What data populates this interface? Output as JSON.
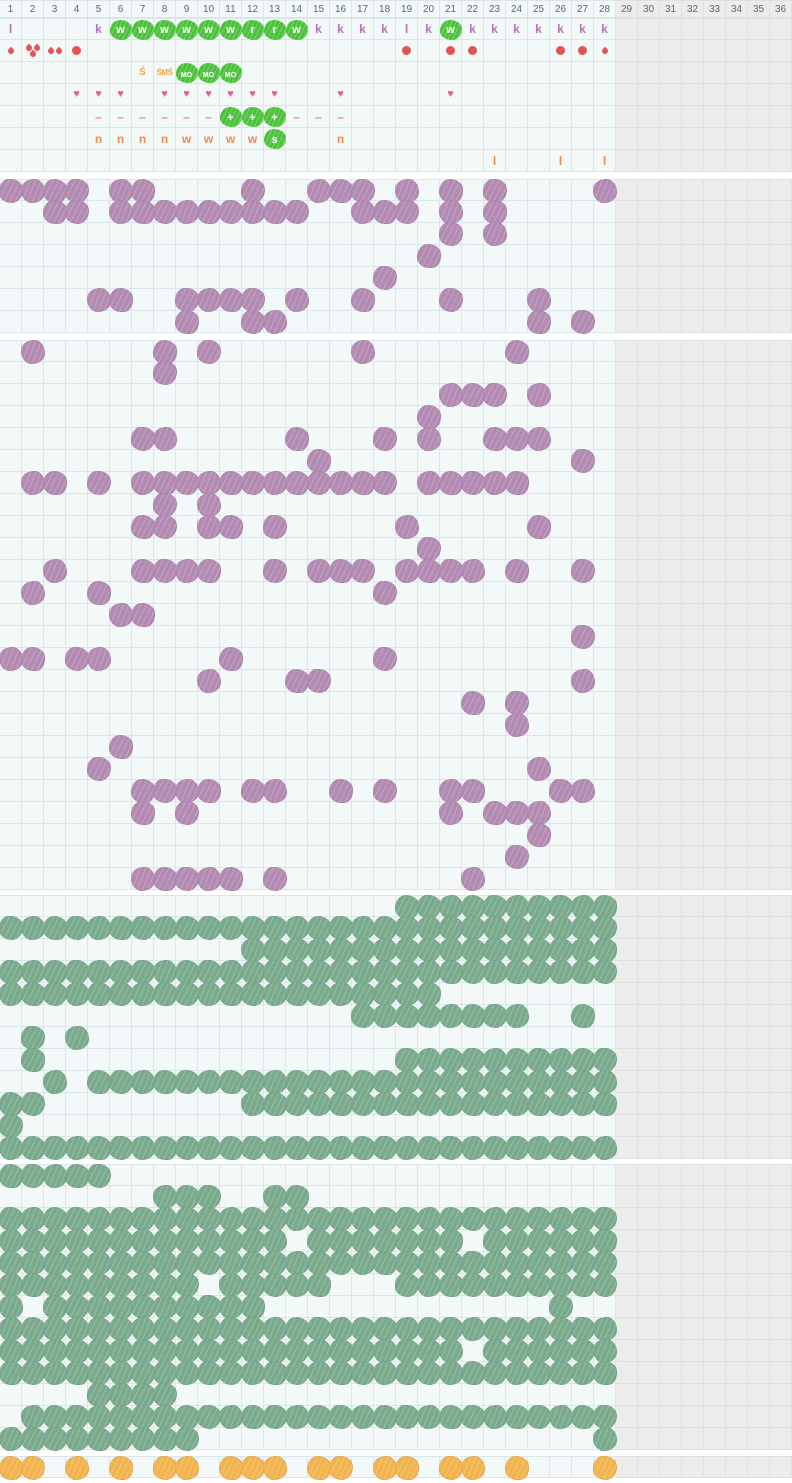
{
  "colors": {
    "purple_blob": "#b28ab2",
    "green_blob": "#7aaa8c",
    "orange_blob": "#f2b44e",
    "highlight_green": "#4cc23c",
    "red_symbol": "#e25454",
    "heart_pink": "#ee5d8d",
    "purple_text": "#b573b5",
    "orange_text": "#f28a50",
    "amber_text": "#f3a53f",
    "grid_line": "#d9e7ed",
    "cell_bg": "#f3f8f9",
    "inactive_bg": "#ececeb"
  },
  "grid": {
    "columns": 36,
    "active_columns": 28,
    "day_numbers": [
      "1",
      "2",
      "3",
      "4",
      "5",
      "6",
      "7",
      "8",
      "9",
      "10",
      "11",
      "12",
      "13",
      "14",
      "15",
      "16",
      "17",
      "18",
      "19",
      "20",
      "21",
      "22",
      "23",
      "24",
      "25",
      "26",
      "27",
      "28",
      "29",
      "30",
      "31",
      "32",
      "33",
      "34",
      "35",
      "36"
    ]
  },
  "header_section": {
    "rows": [
      {
        "name": "letters-row",
        "cells": [
          {
            "c": 1,
            "kind": "letter",
            "color": "p",
            "text": "l"
          },
          {
            "c": 5,
            "kind": "letter",
            "color": "p",
            "text": "k"
          },
          {
            "c": 6,
            "kind": "hl",
            "text": "w"
          },
          {
            "c": 7,
            "kind": "hl",
            "text": "w"
          },
          {
            "c": 8,
            "kind": "hl",
            "text": "w"
          },
          {
            "c": 9,
            "kind": "hl",
            "text": "w"
          },
          {
            "c": 10,
            "kind": "hl",
            "text": "w"
          },
          {
            "c": 11,
            "kind": "hl",
            "text": "w"
          },
          {
            "c": 12,
            "kind": "hl",
            "text": "r"
          },
          {
            "c": 13,
            "kind": "hl",
            "text": "r"
          },
          {
            "c": 14,
            "kind": "hl",
            "text": "w"
          },
          {
            "c": 15,
            "kind": "letter",
            "color": "p",
            "text": "k"
          },
          {
            "c": 16,
            "kind": "letter",
            "color": "p",
            "text": "k"
          },
          {
            "c": 17,
            "kind": "letter",
            "color": "p",
            "text": "k"
          },
          {
            "c": 18,
            "kind": "letter",
            "color": "p",
            "text": "k"
          },
          {
            "c": 19,
            "kind": "letter",
            "color": "p",
            "text": "l"
          },
          {
            "c": 20,
            "kind": "letter",
            "color": "p",
            "text": "k"
          },
          {
            "c": 21,
            "kind": "hl",
            "text": "w"
          },
          {
            "c": 22,
            "kind": "letter",
            "color": "p",
            "text": "k"
          },
          {
            "c": 23,
            "kind": "letter",
            "color": "p",
            "text": "k"
          },
          {
            "c": 24,
            "kind": "letter",
            "color": "p",
            "text": "k"
          },
          {
            "c": 25,
            "kind": "letter",
            "color": "p",
            "text": "k"
          },
          {
            "c": 26,
            "kind": "letter",
            "color": "p",
            "text": "k"
          },
          {
            "c": 27,
            "kind": "letter",
            "color": "p",
            "text": "k"
          },
          {
            "c": 28,
            "kind": "letter",
            "color": "p",
            "text": "k"
          }
        ]
      },
      {
        "name": "flow-row",
        "cells": [
          {
            "c": 1,
            "kind": "drop1"
          },
          {
            "c": 2,
            "kind": "drop3"
          },
          {
            "c": 3,
            "kind": "drop2"
          },
          {
            "c": 4,
            "kind": "dot"
          },
          {
            "c": 19,
            "kind": "dot"
          },
          {
            "c": 21,
            "kind": "dot"
          },
          {
            "c": 22,
            "kind": "dot"
          },
          {
            "c": 26,
            "kind": "dot"
          },
          {
            "c": 27,
            "kind": "dot"
          },
          {
            "c": 28,
            "kind": "drop1"
          }
        ]
      },
      {
        "name": "notes-row",
        "cells": [
          {
            "c": 7,
            "kind": "letter",
            "color": "a",
            "text": "Ś"
          },
          {
            "c": 8,
            "kind": "letter",
            "color": "a small",
            "text": "ŚMŚ"
          },
          {
            "c": 9,
            "kind": "hl-tiny",
            "text": "MO"
          },
          {
            "c": 10,
            "kind": "hl-tiny",
            "text": "MO"
          },
          {
            "c": 11,
            "kind": "hl-tiny",
            "text": "MO"
          }
        ]
      },
      {
        "name": "hearts-row",
        "cells": [
          {
            "c": 4,
            "kind": "heart"
          },
          {
            "c": 5,
            "kind": "heart"
          },
          {
            "c": 6,
            "kind": "heart"
          },
          {
            "c": 8,
            "kind": "heart"
          },
          {
            "c": 9,
            "kind": "heart"
          },
          {
            "c": 10,
            "kind": "heart"
          },
          {
            "c": 11,
            "kind": "heart"
          },
          {
            "c": 12,
            "kind": "heart"
          },
          {
            "c": 13,
            "kind": "heart"
          },
          {
            "c": 16,
            "kind": "heart"
          },
          {
            "c": 21,
            "kind": "heart"
          }
        ]
      },
      {
        "name": "plan-row",
        "cells": [
          {
            "c": 5,
            "kind": "letter",
            "color": "o",
            "text": "–"
          },
          {
            "c": 6,
            "kind": "letter",
            "color": "o",
            "text": "–"
          },
          {
            "c": 7,
            "kind": "letter",
            "color": "o",
            "text": "–"
          },
          {
            "c": 8,
            "kind": "letter",
            "color": "o",
            "text": "–"
          },
          {
            "c": 9,
            "kind": "letter",
            "color": "o",
            "text": "–"
          },
          {
            "c": 10,
            "kind": "letter",
            "color": "o",
            "text": "–"
          },
          {
            "c": 11,
            "kind": "hl",
            "text": "+"
          },
          {
            "c": 12,
            "kind": "hl",
            "text": "+"
          },
          {
            "c": 13,
            "kind": "hl",
            "text": "+"
          },
          {
            "c": 14,
            "kind": "letter",
            "color": "o",
            "text": "–"
          },
          {
            "c": 15,
            "kind": "letter",
            "color": "o",
            "text": "–"
          },
          {
            "c": 16,
            "kind": "letter",
            "color": "o",
            "text": "–"
          }
        ]
      },
      {
        "name": "shift-row",
        "cells": [
          {
            "c": 5,
            "kind": "letter",
            "color": "o",
            "text": "n"
          },
          {
            "c": 6,
            "kind": "letter",
            "color": "o",
            "text": "n"
          },
          {
            "c": 7,
            "kind": "letter",
            "color": "o",
            "text": "n"
          },
          {
            "c": 8,
            "kind": "letter",
            "color": "o",
            "text": "n"
          },
          {
            "c": 9,
            "kind": "letter",
            "color": "o",
            "text": "w"
          },
          {
            "c": 10,
            "kind": "letter",
            "color": "o",
            "text": "w"
          },
          {
            "c": 11,
            "kind": "letter",
            "color": "o",
            "text": "w"
          },
          {
            "c": 12,
            "kind": "letter",
            "color": "o",
            "text": "w"
          },
          {
            "c": 13,
            "kind": "hl",
            "text": "s"
          },
          {
            "c": 16,
            "kind": "letter",
            "color": "o",
            "text": "n"
          }
        ]
      },
      {
        "name": "marks-row",
        "cells": [
          {
            "c": 23,
            "kind": "letter",
            "color": "o",
            "text": "l"
          },
          {
            "c": 26,
            "kind": "letter",
            "color": "o",
            "text": "l"
          },
          {
            "c": 28,
            "kind": "letter",
            "color": "o",
            "text": "l"
          }
        ]
      }
    ]
  },
  "blob_sections": [
    {
      "id": "tracker-purple-1",
      "color": "purple",
      "gap_before": "gap7",
      "rows": [
        [
          1,
          2,
          3,
          4,
          6,
          7,
          12,
          15,
          16,
          17,
          19,
          21,
          23,
          28
        ],
        [
          3,
          4,
          "6-14",
          17,
          18,
          19,
          21,
          23
        ],
        [
          21,
          23
        ],
        [
          20
        ],
        [
          18
        ],
        [
          5,
          6,
          "9-12",
          14,
          17,
          21,
          25
        ],
        [
          9,
          12,
          13,
          25,
          27
        ]
      ]
    },
    {
      "id": "tracker-purple-2",
      "color": "purple",
      "gap_before": "gap7",
      "rows": [
        [
          2,
          8,
          10,
          17,
          24
        ],
        [
          8
        ],
        [
          21,
          22,
          23,
          25
        ],
        [
          20
        ],
        [
          7,
          8,
          14,
          18,
          20,
          23,
          24,
          25
        ],
        [
          15,
          27
        ],
        [
          2,
          3,
          5,
          "7-18",
          "20-24"
        ],
        [
          8,
          10
        ],
        [
          7,
          8,
          10,
          11,
          13,
          19,
          25
        ],
        [
          20
        ],
        [
          "3",
          7,
          8,
          9,
          10,
          13,
          15,
          16,
          17,
          "19-22",
          24,
          27
        ],
        [
          2,
          5,
          18
        ],
        [
          6,
          7
        ],
        [
          27
        ],
        [
          1,
          2,
          4,
          5,
          11,
          18
        ],
        [
          10,
          14,
          15,
          27
        ],
        [
          22,
          24
        ],
        [
          24
        ],
        [
          6
        ],
        [
          5,
          25
        ],
        [
          "7-10",
          12,
          13,
          16,
          18,
          21,
          22,
          26,
          27
        ],
        [
          7,
          9,
          21,
          23,
          24,
          25
        ],
        [
          25
        ],
        [
          24
        ],
        [
          "7-11",
          13,
          22
        ]
      ]
    },
    {
      "id": "tracker-green-1",
      "color": "green",
      "gap_before": "gap5",
      "rows": [
        [
          "19-28"
        ],
        [
          "1-28"
        ],
        [
          "12-28"
        ],
        [
          "1-28"
        ],
        [
          "1-20"
        ],
        [
          "17-24",
          27
        ],
        [
          2,
          4
        ],
        [
          2,
          "19-28"
        ],
        [
          3,
          "5-28"
        ],
        [
          1,
          2,
          "12-28"
        ],
        [
          1
        ],
        [
          "1-28"
        ]
      ]
    },
    {
      "id": "tracker-green-2",
      "color": "green",
      "gap_before": "gap5",
      "rows": [
        [
          "1-5"
        ],
        [
          8,
          9,
          10,
          13,
          14
        ],
        [
          "1-28"
        ],
        [
          "1-13",
          "15-21",
          "23-28"
        ],
        [
          "1-28"
        ],
        [
          "1-9",
          "11-15",
          "19-28"
        ],
        [
          1,
          "3-12",
          26
        ],
        [
          "1-28"
        ],
        [
          "1-21",
          "23-28"
        ],
        [
          "1-28"
        ],
        [
          "5-8"
        ],
        [
          "2-28"
        ],
        [
          "1-9",
          28
        ]
      ]
    },
    {
      "id": "tracker-orange",
      "color": "orange",
      "gap_before": "gap6",
      "rows": [
        [
          1,
          2,
          4,
          6,
          8,
          9,
          11,
          12,
          13,
          15,
          16,
          18,
          19,
          21,
          22,
          24,
          28
        ]
      ]
    }
  ]
}
